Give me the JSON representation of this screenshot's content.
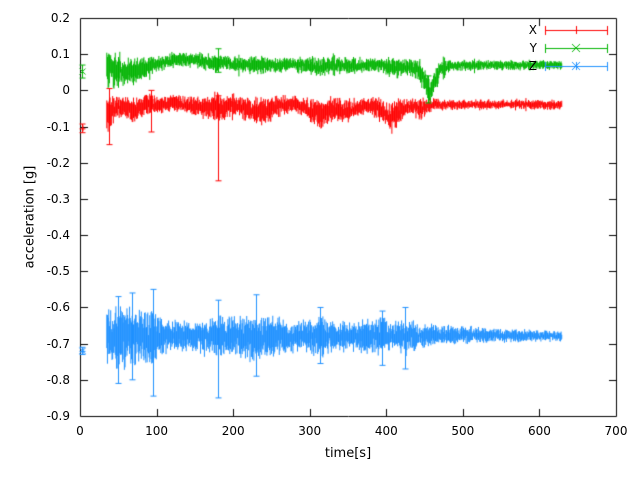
{
  "chart_data": {
    "type": "line",
    "style": "points-with-errorbars",
    "title": "",
    "xlabel": "time[s]",
    "ylabel": "acceleration [g]",
    "xlim": [
      0,
      700
    ],
    "ylim": [
      -0.9,
      0.2
    ],
    "xticks": [
      0,
      100,
      200,
      300,
      400,
      500,
      600,
      700
    ],
    "yticks": [
      0.2,
      0.1,
      0,
      -0.1,
      -0.2,
      -0.3,
      -0.4,
      -0.5,
      -0.6,
      -0.7,
      -0.8,
      -0.9
    ],
    "grid": false,
    "legend_position": "top-right-inside",
    "series": [
      {
        "name": "X",
        "color": "#ff0000",
        "marker": "plus",
        "mean_level": -0.05,
        "start_point": [
          2,
          -0.105,
          0.012
        ],
        "envelope": [
          [
            35,
            -0.07,
            0.06
          ],
          [
            42,
            -0.05,
            0.04
          ],
          [
            55,
            -0.045,
            0.025
          ],
          [
            70,
            -0.055,
            0.03
          ],
          [
            85,
            -0.04,
            0.03
          ],
          [
            100,
            -0.04,
            0.022
          ],
          [
            120,
            -0.035,
            0.02
          ],
          [
            140,
            -0.04,
            0.022
          ],
          [
            160,
            -0.045,
            0.028
          ],
          [
            175,
            -0.05,
            0.035
          ],
          [
            185,
            -0.05,
            0.035
          ],
          [
            200,
            -0.04,
            0.022
          ],
          [
            215,
            -0.05,
            0.03
          ],
          [
            235,
            -0.06,
            0.035
          ],
          [
            250,
            -0.05,
            0.03
          ],
          [
            265,
            -0.04,
            0.022
          ],
          [
            285,
            -0.04,
            0.02
          ],
          [
            300,
            -0.055,
            0.03
          ],
          [
            315,
            -0.065,
            0.035
          ],
          [
            330,
            -0.05,
            0.03
          ],
          [
            345,
            -0.06,
            0.03
          ],
          [
            360,
            -0.05,
            0.025
          ],
          [
            375,
            -0.04,
            0.02
          ],
          [
            390,
            -0.05,
            0.028
          ],
          [
            405,
            -0.075,
            0.04
          ],
          [
            418,
            -0.06,
            0.035
          ],
          [
            430,
            -0.045,
            0.022
          ],
          [
            445,
            -0.05,
            0.028
          ],
          [
            458,
            -0.04,
            0.016
          ],
          [
            475,
            -0.04,
            0.013
          ],
          [
            520,
            -0.04,
            0.012
          ],
          [
            570,
            -0.038,
            0.012
          ],
          [
            630,
            -0.04,
            0.012
          ]
        ],
        "spikes": [
          [
            38,
            -0.15,
            0.005
          ],
          [
            93,
            -0.115,
            0.0
          ],
          [
            180,
            -0.25,
            -0.015
          ]
        ]
      },
      {
        "name": "Y",
        "color": "#00b400",
        "marker": "cross",
        "mean_level": 0.07,
        "start_point": [
          2,
          0.052,
          0.018
        ],
        "envelope": [
          [
            35,
            0.06,
            0.05
          ],
          [
            48,
            0.055,
            0.045
          ],
          [
            62,
            0.05,
            0.035
          ],
          [
            78,
            0.055,
            0.03
          ],
          [
            95,
            0.07,
            0.022
          ],
          [
            112,
            0.078,
            0.02
          ],
          [
            128,
            0.085,
            0.02
          ],
          [
            145,
            0.085,
            0.02
          ],
          [
            160,
            0.08,
            0.02
          ],
          [
            175,
            0.075,
            0.022
          ],
          [
            188,
            0.078,
            0.018
          ],
          [
            205,
            0.072,
            0.018
          ],
          [
            222,
            0.07,
            0.022
          ],
          [
            238,
            0.07,
            0.024
          ],
          [
            255,
            0.07,
            0.02
          ],
          [
            272,
            0.072,
            0.016
          ],
          [
            290,
            0.07,
            0.02
          ],
          [
            308,
            0.066,
            0.024
          ],
          [
            325,
            0.068,
            0.022
          ],
          [
            342,
            0.07,
            0.02
          ],
          [
            360,
            0.068,
            0.02
          ],
          [
            378,
            0.072,
            0.016
          ],
          [
            395,
            0.07,
            0.02
          ],
          [
            410,
            0.062,
            0.026
          ],
          [
            425,
            0.066,
            0.02
          ],
          [
            440,
            0.06,
            0.026
          ],
          [
            449,
            0.035,
            0.035
          ],
          [
            457,
            -0.005,
            0.03
          ],
          [
            464,
            0.025,
            0.03
          ],
          [
            471,
            0.06,
            0.022
          ],
          [
            485,
            0.068,
            0.014
          ],
          [
            530,
            0.07,
            0.012
          ],
          [
            580,
            0.07,
            0.012
          ],
          [
            630,
            0.07,
            0.012
          ]
        ],
        "spikes": [
          [
            180,
            0.05,
            0.115
          ],
          [
            455,
            -0.035,
            0.04
          ]
        ]
      },
      {
        "name": "Z",
        "color": "#1e90ff",
        "marker": "star",
        "mean_level": -0.68,
        "start_point": [
          2,
          -0.72,
          0.01
        ],
        "envelope": [
          [
            35,
            -0.68,
            0.07
          ],
          [
            45,
            -0.69,
            0.08
          ],
          [
            58,
            -0.68,
            0.08
          ],
          [
            72,
            -0.68,
            0.07
          ],
          [
            85,
            -0.685,
            0.065
          ],
          [
            95,
            -0.69,
            0.075
          ],
          [
            105,
            -0.68,
            0.045
          ],
          [
            120,
            -0.68,
            0.038
          ],
          [
            140,
            -0.68,
            0.036
          ],
          [
            160,
            -0.68,
            0.042
          ],
          [
            178,
            -0.68,
            0.058
          ],
          [
            192,
            -0.68,
            0.05
          ],
          [
            210,
            -0.68,
            0.055
          ],
          [
            228,
            -0.685,
            0.058
          ],
          [
            245,
            -0.68,
            0.05
          ],
          [
            262,
            -0.68,
            0.045
          ],
          [
            280,
            -0.68,
            0.038
          ],
          [
            298,
            -0.68,
            0.042
          ],
          [
            314,
            -0.68,
            0.05
          ],
          [
            330,
            -0.68,
            0.04
          ],
          [
            350,
            -0.68,
            0.036
          ],
          [
            370,
            -0.68,
            0.04
          ],
          [
            390,
            -0.68,
            0.046
          ],
          [
            408,
            -0.68,
            0.036
          ],
          [
            424,
            -0.68,
            0.046
          ],
          [
            440,
            -0.678,
            0.032
          ],
          [
            458,
            -0.676,
            0.026
          ],
          [
            478,
            -0.676,
            0.023
          ],
          [
            505,
            -0.676,
            0.02
          ],
          [
            535,
            -0.677,
            0.018
          ],
          [
            565,
            -0.678,
            0.016
          ],
          [
            595,
            -0.679,
            0.014
          ],
          [
            630,
            -0.68,
            0.012
          ]
        ],
        "spikes": [
          [
            50,
            -0.81,
            -0.57
          ],
          [
            68,
            -0.8,
            -0.56
          ],
          [
            95,
            -0.845,
            -0.55
          ],
          [
            180,
            -0.85,
            -0.58
          ],
          [
            230,
            -0.79,
            -0.565
          ],
          [
            313,
            -0.755,
            -0.6
          ],
          [
            395,
            -0.76,
            -0.61
          ],
          [
            425,
            -0.77,
            -0.6
          ]
        ]
      }
    ]
  }
}
